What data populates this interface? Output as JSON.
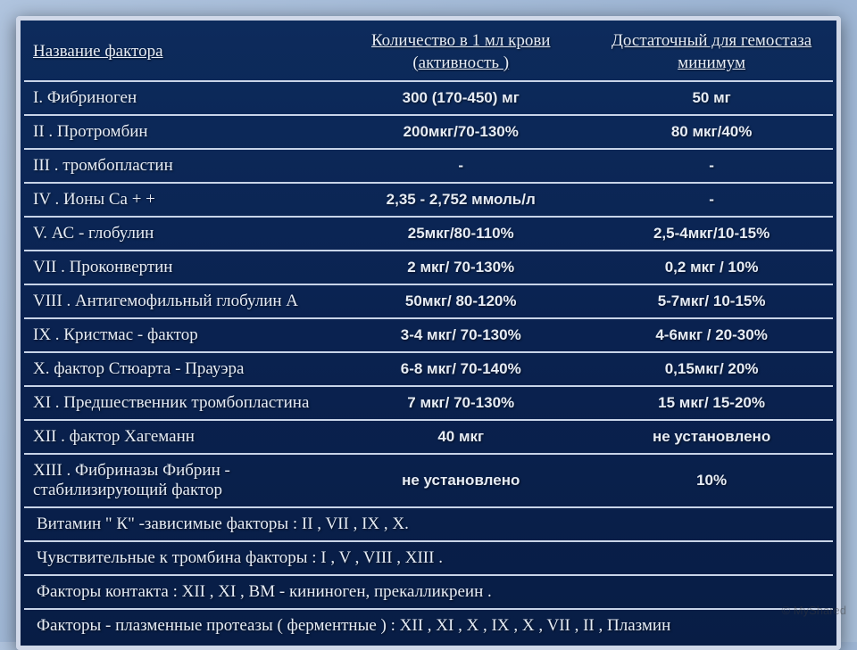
{
  "table": {
    "headers": [
      "Название фактора",
      "Количество в 1 мл крови (активность )",
      "Достаточный для гемостаза минимум"
    ],
    "rows": [
      {
        "name": "I. Фибриноген",
        "amount": "300 (170-450) мг",
        "min": "50 мг"
      },
      {
        "name": "II . Протромбин",
        "amount": "200мкг/70-130%",
        "min": "80 мкг/40%"
      },
      {
        "name": "III . тромбопластин",
        "amount": "-",
        "min": "-"
      },
      {
        "name": "IV . Ионы Са + +",
        "amount": "2,35 - 2,752 ммоль/л",
        "min": "-"
      },
      {
        "name": "V. АС - глобулин",
        "amount": "25мкг/80-110%",
        "min": "2,5-4мкг/10-15%"
      },
      {
        "name": "VII . Проконвертин",
        "amount": "2 мкг/ 70-130%",
        "min": "0,2 мкг / 10%"
      },
      {
        "name": "VIII . Антигемофильный глобулин А",
        "amount": "50мкг/ 80-120%",
        "min": "5-7мкг/ 10-15%"
      },
      {
        "name": "IX . Кристмас - фактор",
        "amount": "3-4 мкг/ 70-130%",
        "min": "4-6мкг / 20-30%"
      },
      {
        "name": "X. фактор Стюарта - Прауэра",
        "amount": "6-8 мкг/ 70-140%",
        "min": "0,15мкг/ 20%"
      },
      {
        "name": "XI . Предшественник тромбопластина",
        "amount": "7 мкг/ 70-130%",
        "min": "15 мкг/ 15-20%"
      },
      {
        "name": "XII . фактор Хагеманн",
        "amount": "40 мкг",
        "min": "не установлено"
      },
      {
        "name": "XIII . Фибриназы Фибрин - стабилизирующий фактор",
        "amount": "не установлено",
        "min": "10%"
      }
    ],
    "notes": [
      "Витамин \" К\" -зависимые факторы : II , VII , IX , X.",
      "Чувствительные к тромбина факторы : I , V , VIII , XIII .",
      "Факторы контакта : XII , XI , ВМ - кининоген, прекалликреин .",
      "Факторы - плазменные протеазы ( ферментные ) : XII , XI , X , IX , X , VII , II , Плазмин"
    ]
  },
  "watermark": "© MyShared"
}
